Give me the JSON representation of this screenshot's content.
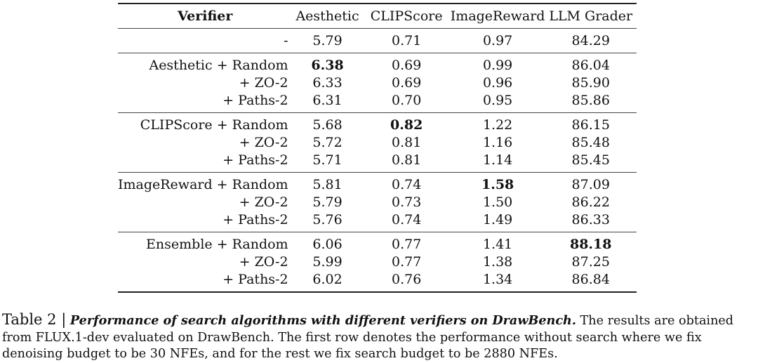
{
  "table": {
    "headers": [
      "Verifier",
      "Aesthetic",
      "CLIPScore",
      "ImageReward",
      "LLM Grader"
    ],
    "groups": [
      {
        "rows": [
          {
            "verifier": "-",
            "values": [
              "5.79",
              "0.71",
              "0.97",
              "84.29"
            ],
            "bold": []
          }
        ]
      },
      {
        "rows": [
          {
            "verifier": "Aesthetic + Random",
            "values": [
              "6.38",
              "0.69",
              "0.99",
              "86.04"
            ],
            "bold": [
              0
            ]
          },
          {
            "verifier": "+ ZO-2",
            "values": [
              "6.33",
              "0.69",
              "0.96",
              "85.90"
            ],
            "bold": []
          },
          {
            "verifier": "+ Paths-2",
            "values": [
              "6.31",
              "0.70",
              "0.95",
              "85.86"
            ],
            "bold": []
          }
        ]
      },
      {
        "rows": [
          {
            "verifier": "CLIPScore + Random",
            "values": [
              "5.68",
              "0.82",
              "1.22",
              "86.15"
            ],
            "bold": [
              1
            ]
          },
          {
            "verifier": "+ ZO-2",
            "values": [
              "5.72",
              "0.81",
              "1.16",
              "85.48"
            ],
            "bold": []
          },
          {
            "verifier": "+ Paths-2",
            "values": [
              "5.71",
              "0.81",
              "1.14",
              "85.45"
            ],
            "bold": []
          }
        ]
      },
      {
        "rows": [
          {
            "verifier": "ImageReward + Random",
            "values": [
              "5.81",
              "0.74",
              "1.58",
              "87.09"
            ],
            "bold": [
              2
            ]
          },
          {
            "verifier": "+ ZO-2",
            "values": [
              "5.79",
              "0.73",
              "1.50",
              "86.22"
            ],
            "bold": []
          },
          {
            "verifier": "+ Paths-2",
            "values": [
              "5.76",
              "0.74",
              "1.49",
              "86.33"
            ],
            "bold": []
          }
        ]
      },
      {
        "rows": [
          {
            "verifier": "Ensemble + Random",
            "values": [
              "6.06",
              "0.77",
              "1.41",
              "88.18"
            ],
            "bold": [
              3
            ]
          },
          {
            "verifier": "+ ZO-2",
            "values": [
              "5.99",
              "0.77",
              "1.38",
              "87.25"
            ],
            "bold": []
          },
          {
            "verifier": "+ Paths-2",
            "values": [
              "6.02",
              "0.76",
              "1.34",
              "86.84"
            ],
            "bold": []
          }
        ]
      }
    ]
  },
  "caption": {
    "label": "Table 2 |",
    "title": "Performance of search algorithms with different verifiers on DrawBench.",
    "body": "The results are obtained from FLUX.1-dev evaluated on DrawBench. The first row denotes the performance without search where we fix denoising budget to be 30 NFEs, and for the rest we fix search budget to be 2880 NFEs."
  }
}
